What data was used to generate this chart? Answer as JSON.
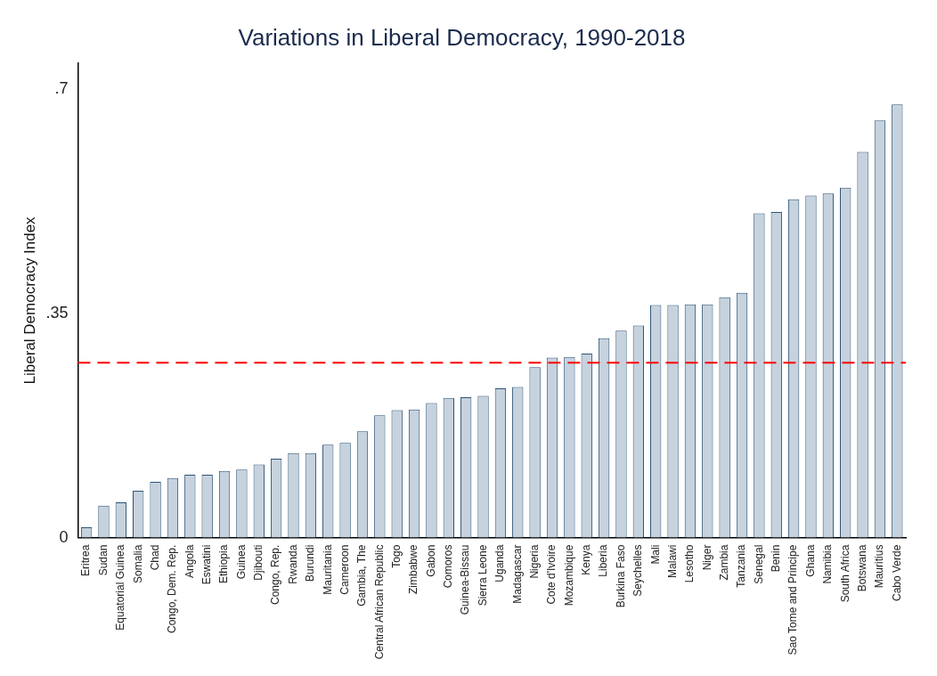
{
  "chart_data": {
    "type": "bar",
    "title": "Variations in Liberal Democracy, 1990-2018",
    "ylabel": "Liberal Democracy Index",
    "categories": [
      "Eritrea",
      "Sudan",
      "Equatorial Guinea",
      "Somalia",
      "Chad",
      "Congo, Dem. Rep.",
      "Angola",
      "Eswatini",
      "Ethiopia",
      "Guinea",
      "Djibouti",
      "Congo, Rep.",
      "Rwanda",
      "Burundi",
      "Mauritania",
      "Cameroon",
      "Gambia, The",
      "Central African Republic",
      "Togo",
      "Zimbabwe",
      "Gabon",
      "Comoros",
      "Guinea-Bissau",
      "Sierra Leone",
      "Uganda",
      "Madagascar",
      "Nigeria",
      "Cote d'Ivoire",
      "Mozambique",
      "Kenya",
      "Liberia",
      "Burkina Faso",
      "Seychelles",
      "Mali",
      "Malawi",
      "Lesotho",
      "Niger",
      "Zambia",
      "Tanzania",
      "Senegal",
      "Benin",
      "Sao Tome and Principe",
      "Ghana",
      "Namibia",
      "South Africa",
      "Botswana",
      "Mauritius",
      "Cabo Verde"
    ],
    "values": [
      0.016,
      0.05,
      0.055,
      0.073,
      0.087,
      0.093,
      0.098,
      0.098,
      0.104,
      0.106,
      0.114,
      0.123,
      0.132,
      0.132,
      0.145,
      0.148,
      0.166,
      0.191,
      0.199,
      0.2,
      0.21,
      0.218,
      0.219,
      0.221,
      0.233,
      0.235,
      0.266,
      0.281,
      0.282,
      0.287,
      0.311,
      0.323,
      0.331,
      0.363,
      0.363,
      0.364,
      0.364,
      0.375,
      0.382,
      0.506,
      0.508,
      0.528,
      0.534,
      0.537,
      0.546,
      0.602,
      0.651,
      0.676
    ],
    "color": "#c6d2de",
    "ylim": [
      0,
      0.74
    ],
    "yticks": [
      {
        "value": 0,
        "label": "0"
      },
      {
        "value": 0.35,
        "label": ".35"
      },
      {
        "value": 0.7,
        "label": ".7"
      }
    ],
    "ref_lines": [
      {
        "axis": "y",
        "value": 0.273,
        "color": "#ff0000",
        "line_style": "dashed"
      }
    ],
    "grid": false,
    "legend": false
  }
}
